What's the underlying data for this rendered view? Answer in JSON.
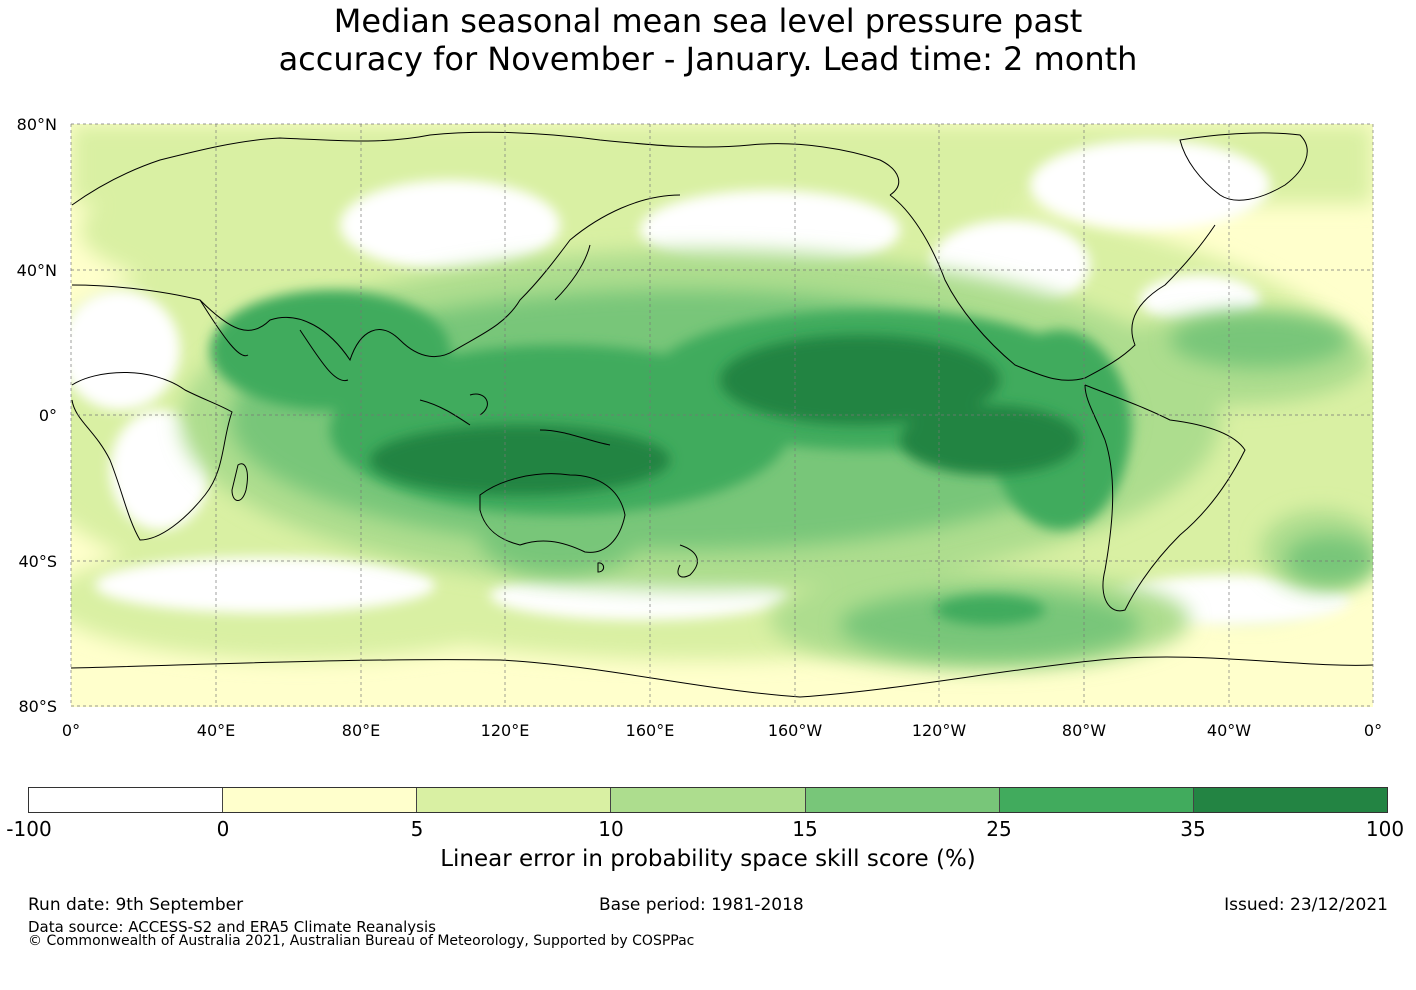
{
  "title": {
    "line1": "Median seasonal mean sea level pressure past",
    "line2": "accuracy for November - January. Lead time: 2 month"
  },
  "map": {
    "lat_labels": [
      "80°N",
      "40°N",
      "0°",
      "40°S",
      "80°S"
    ],
    "lon_labels": [
      "0°",
      "40°E",
      "80°E",
      "120°E",
      "160°E",
      "160°W",
      "120°W",
      "80°W",
      "40°W",
      "0°"
    ],
    "colors": {
      "land_line": "#000000",
      "grid": "#777777"
    }
  },
  "colorbar": {
    "ticks": [
      "-100",
      "0",
      "5",
      "10",
      "15",
      "25",
      "35",
      "100"
    ],
    "colors": [
      "#ffffff",
      "#ffffcc",
      "#d9f0a3",
      "#addd8e",
      "#78c679",
      "#41ab5d",
      "#238443"
    ],
    "label": "Linear error in probability space skill score (%)"
  },
  "footer": {
    "run_date": "Run date: 9th September",
    "base_period": "Base period: 1981-2018",
    "issued": "Issued: 23/12/2021",
    "data_source": "Data source: ACCESS-S2 and ERA5 Climate Reanalysis",
    "copyright": "© Commonwealth of Australia 2021, Australian Bureau of Meteorology, Supported by COSPPac"
  }
}
